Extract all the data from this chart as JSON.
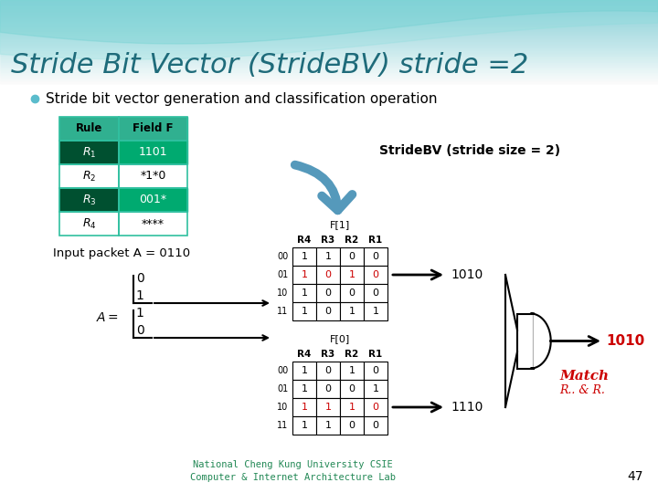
{
  "title": "Stride Bit Vector (StrideBV) stride =2",
  "title_color": "#1E6B7A",
  "bullet_text": "Stride bit vector generation and classification operation",
  "bullet_color": "#5BBCCC",
  "rule_table": {
    "headers": [
      "Rule",
      "Field F"
    ],
    "rows": [
      [
        "R1",
        "1101"
      ],
      [
        "R2",
        "*1*0"
      ],
      [
        "R3",
        "001*"
      ],
      [
        "R4",
        "****"
      ]
    ],
    "row_colors": [
      "#005030",
      "#FFFFFF",
      "#005030",
      "#FFFFFF"
    ],
    "field_colors": [
      "#00AA70",
      "#FFFFFF",
      "#00AA70",
      "#FFFFFF"
    ],
    "text_colors": [
      "#FFFFFF",
      "#000000",
      "#FFFFFF",
      "#000000"
    ],
    "header_bg": "#30B090",
    "border_color": "#30C0A0"
  },
  "stride_bv_label": "StrideBV (stride size = 2)",
  "input_packet": "Input packet A = 0110",
  "A_vector": [
    "0",
    "1",
    "1",
    "0"
  ],
  "f1_label": "F[1]",
  "f0_label": "F[0]",
  "f1_col_headers": [
    "R4",
    "R3",
    "R2",
    "R1"
  ],
  "f0_col_headers": [
    "R4",
    "R3",
    "R2",
    "R1"
  ],
  "f1_row_labels": [
    "00",
    "01",
    "10",
    "11"
  ],
  "f0_row_labels": [
    "00",
    "01",
    "10",
    "11"
  ],
  "f1_data": [
    [
      "1",
      "1",
      "0",
      "0"
    ],
    [
      "1",
      "0",
      "1",
      "0"
    ],
    [
      "1",
      "0",
      "0",
      "0"
    ],
    [
      "1",
      "0",
      "1",
      "1"
    ]
  ],
  "f1_red_row": 1,
  "f0_data": [
    [
      "1",
      "0",
      "1",
      "0"
    ],
    [
      "1",
      "0",
      "0",
      "1"
    ],
    [
      "1",
      "1",
      "1",
      "0"
    ],
    [
      "1",
      "1",
      "0",
      "0"
    ]
  ],
  "f0_red_row": 2,
  "result1": "1010",
  "result2": "1110",
  "and_result": "1010",
  "match_text": "Match",
  "match_detail": "R.. & R.",
  "result_color": "#CC0000",
  "arrow_color": "#5599BB",
  "footer": "National Cheng Kung University CSIE\nComputer & Internet Architecture Lab",
  "page_num": "47",
  "footer_color": "#228855"
}
